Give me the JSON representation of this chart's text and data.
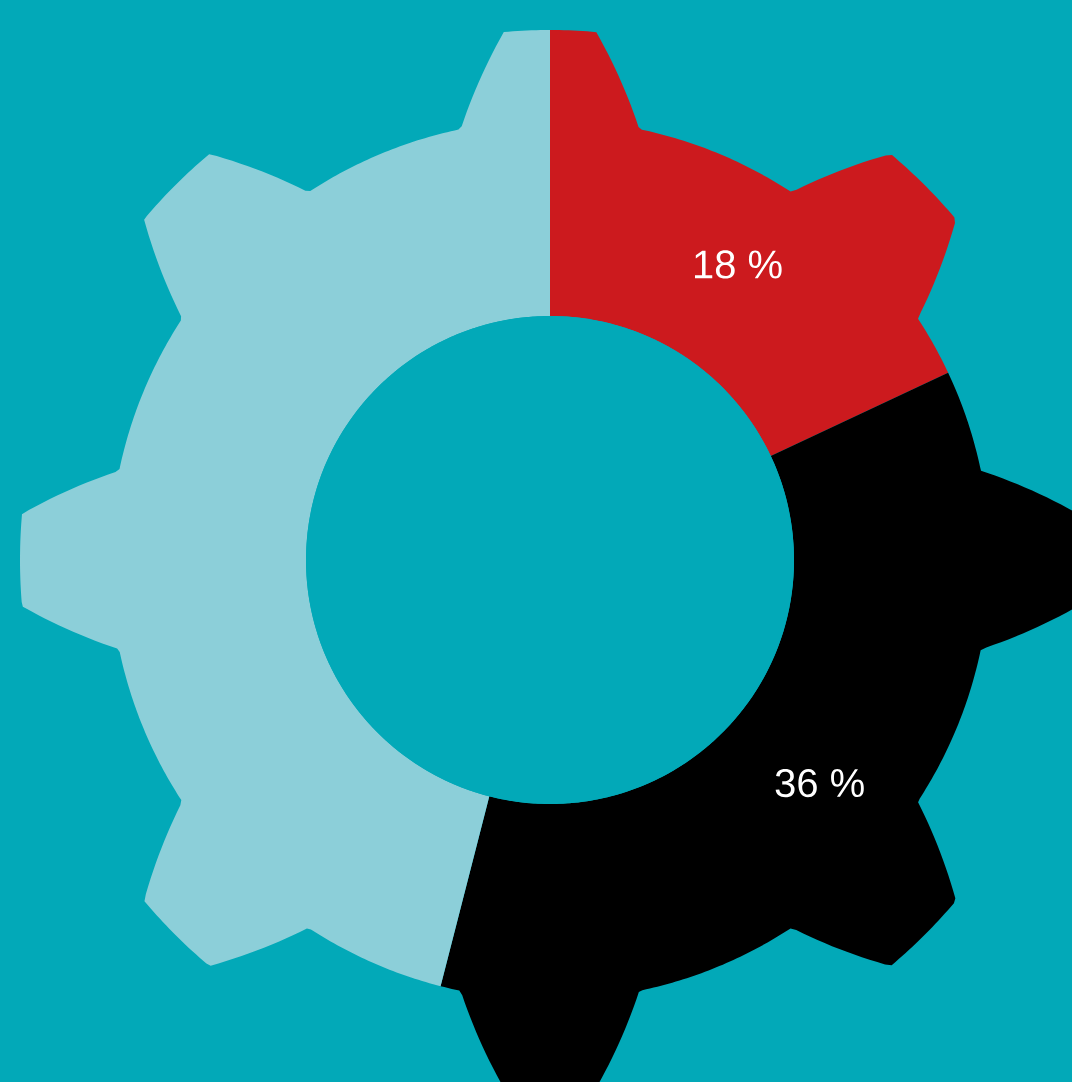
{
  "chart_data": {
    "type": "donut",
    "categories": [
      null,
      null,
      null
    ],
    "values": [
      18,
      36,
      46
    ],
    "colors": [
      "#cc1a1e",
      "#000000",
      "#8ccfd9"
    ],
    "value_labels": [
      "18 %",
      "36 %",
      null
    ]
  }
}
